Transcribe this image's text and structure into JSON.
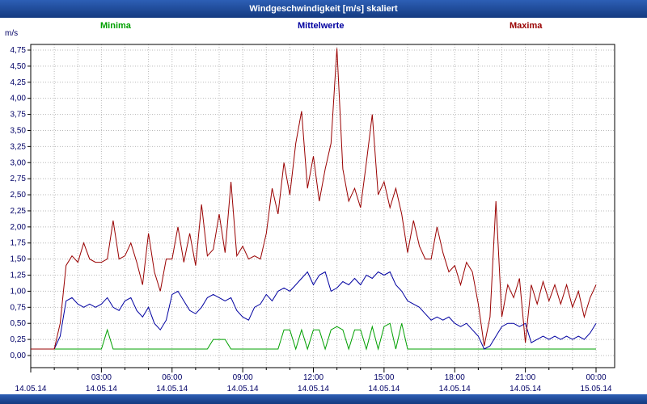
{
  "window": {
    "title": "Windgeschwindigkeit [m/s] skaliert"
  },
  "legend": {
    "minima": "Minima",
    "mittelwerte": "Mittelwerte",
    "maxima": "Maxima"
  },
  "colors": {
    "title_bar": "#1b4b9e",
    "minima": "#00a000",
    "mittelwerte": "#0000a0",
    "maxima": "#990000",
    "grid": "#b8b8b8",
    "tick_text": "#000066"
  },
  "chart_data": {
    "type": "line",
    "title": "Windgeschwindigkeit [m/s] skaliert",
    "ylabel": "m/s",
    "ylim": [
      0,
      4.75
    ],
    "y_tick_step": 0.25,
    "y_tick_labels": [
      "0,00",
      "0,25",
      "0,50",
      "0,75",
      "1,00",
      "1,25",
      "1,50",
      "1,75",
      "2,00",
      "2,25",
      "2,50",
      "2,75",
      "3,00",
      "3,25",
      "3,50",
      "3,75",
      "4,00",
      "4,25",
      "4,50",
      "4,75"
    ],
    "x_hours": [
      0,
      24
    ],
    "x_interval_minutes": 15,
    "grid": "dotted",
    "legend_position": "top",
    "x_ticks": [
      {
        "hour": 0,
        "time": "",
        "date": "14.05.14"
      },
      {
        "hour": 3,
        "time": "03:00",
        "date": "14.05.14"
      },
      {
        "hour": 6,
        "time": "06:00",
        "date": "14.05.14"
      },
      {
        "hour": 9,
        "time": "09:00",
        "date": "14.05.14"
      },
      {
        "hour": 12,
        "time": "12:00",
        "date": "14.05.14"
      },
      {
        "hour": 15,
        "time": "15:00",
        "date": "14.05.14"
      },
      {
        "hour": 18,
        "time": "18:00",
        "date": "14.05.14"
      },
      {
        "hour": 21,
        "time": "21:00",
        "date": "14.05.14"
      },
      {
        "hour": 24,
        "time": "00:00",
        "date": "15.05.14"
      }
    ],
    "series": [
      {
        "name": "Minima",
        "color": "#00a000",
        "values": [
          0.1,
          0.1,
          0.1,
          0.1,
          0.1,
          0.1,
          0.1,
          0.1,
          0.1,
          0.1,
          0.1,
          0.1,
          0.1,
          0.4,
          0.1,
          0.1,
          0.1,
          0.1,
          0.1,
          0.1,
          0.1,
          0.1,
          0.1,
          0.1,
          0.1,
          0.1,
          0.1,
          0.1,
          0.1,
          0.1,
          0.1,
          0.25,
          0.25,
          0.25,
          0.1,
          0.1,
          0.1,
          0.1,
          0.1,
          0.1,
          0.1,
          0.1,
          0.1,
          0.4,
          0.4,
          0.1,
          0.4,
          0.1,
          0.4,
          0.4,
          0.1,
          0.4,
          0.45,
          0.4,
          0.1,
          0.4,
          0.4,
          0.1,
          0.45,
          0.1,
          0.45,
          0.5,
          0.1,
          0.5,
          0.1,
          0.1,
          0.1,
          0.1,
          0.1,
          0.1,
          0.1,
          0.1,
          0.1,
          0.1,
          0.1,
          0.1,
          0.1,
          0.1,
          0.1,
          0.1,
          0.1,
          0.1,
          0.1,
          0.1,
          0.1,
          0.1,
          0.1,
          0.1,
          0.1,
          0.1,
          0.1,
          0.1,
          0.1,
          0.1,
          0.1,
          0.1,
          0.1
        ]
      },
      {
        "name": "Mittelwerte",
        "color": "#0000a0",
        "values": [
          0.1,
          0.1,
          0.1,
          0.1,
          0.1,
          0.3,
          0.85,
          0.9,
          0.8,
          0.75,
          0.8,
          0.75,
          0.8,
          0.9,
          0.75,
          0.7,
          0.85,
          0.9,
          0.7,
          0.6,
          0.75,
          0.5,
          0.4,
          0.55,
          0.95,
          1.0,
          0.85,
          0.7,
          0.65,
          0.75,
          0.9,
          0.95,
          0.9,
          0.85,
          0.9,
          0.7,
          0.6,
          0.55,
          0.75,
          0.8,
          0.95,
          0.85,
          1.0,
          1.05,
          1.0,
          1.1,
          1.2,
          1.3,
          1.1,
          1.25,
          1.3,
          1.0,
          1.05,
          1.15,
          1.1,
          1.2,
          1.1,
          1.25,
          1.2,
          1.3,
          1.25,
          1.3,
          1.1,
          1.0,
          0.85,
          0.8,
          0.75,
          0.65,
          0.55,
          0.6,
          0.55,
          0.6,
          0.5,
          0.45,
          0.5,
          0.4,
          0.3,
          0.1,
          0.15,
          0.3,
          0.45,
          0.5,
          0.5,
          0.45,
          0.5,
          0.2,
          0.25,
          0.3,
          0.25,
          0.3,
          0.25,
          0.3,
          0.25,
          0.3,
          0.25,
          0.35,
          0.5
        ]
      },
      {
        "name": "Maxima",
        "color": "#990000",
        "values": [
          0.1,
          0.1,
          0.1,
          0.1,
          0.1,
          0.5,
          1.4,
          1.55,
          1.45,
          1.75,
          1.5,
          1.45,
          1.45,
          1.5,
          2.1,
          1.5,
          1.55,
          1.75,
          1.45,
          1.1,
          1.9,
          1.3,
          1.0,
          1.5,
          1.5,
          2.0,
          1.45,
          1.9,
          1.4,
          2.35,
          1.55,
          1.65,
          2.2,
          1.6,
          2.7,
          1.55,
          1.7,
          1.5,
          1.55,
          1.5,
          1.9,
          2.6,
          2.2,
          3.0,
          2.5,
          3.3,
          3.8,
          2.6,
          3.1,
          2.4,
          2.9,
          3.3,
          4.78,
          2.9,
          2.4,
          2.6,
          2.3,
          3.0,
          3.75,
          2.5,
          2.7,
          2.3,
          2.6,
          2.2,
          1.6,
          2.1,
          1.7,
          1.5,
          1.5,
          2.0,
          1.6,
          1.3,
          1.4,
          1.1,
          1.45,
          1.3,
          0.8,
          0.15,
          0.6,
          2.4,
          0.6,
          1.1,
          0.9,
          1.2,
          0.2,
          1.1,
          0.8,
          1.15,
          0.85,
          1.1,
          0.8,
          1.1,
          0.75,
          1.0,
          0.6,
          0.9,
          1.1
        ]
      }
    ]
  }
}
